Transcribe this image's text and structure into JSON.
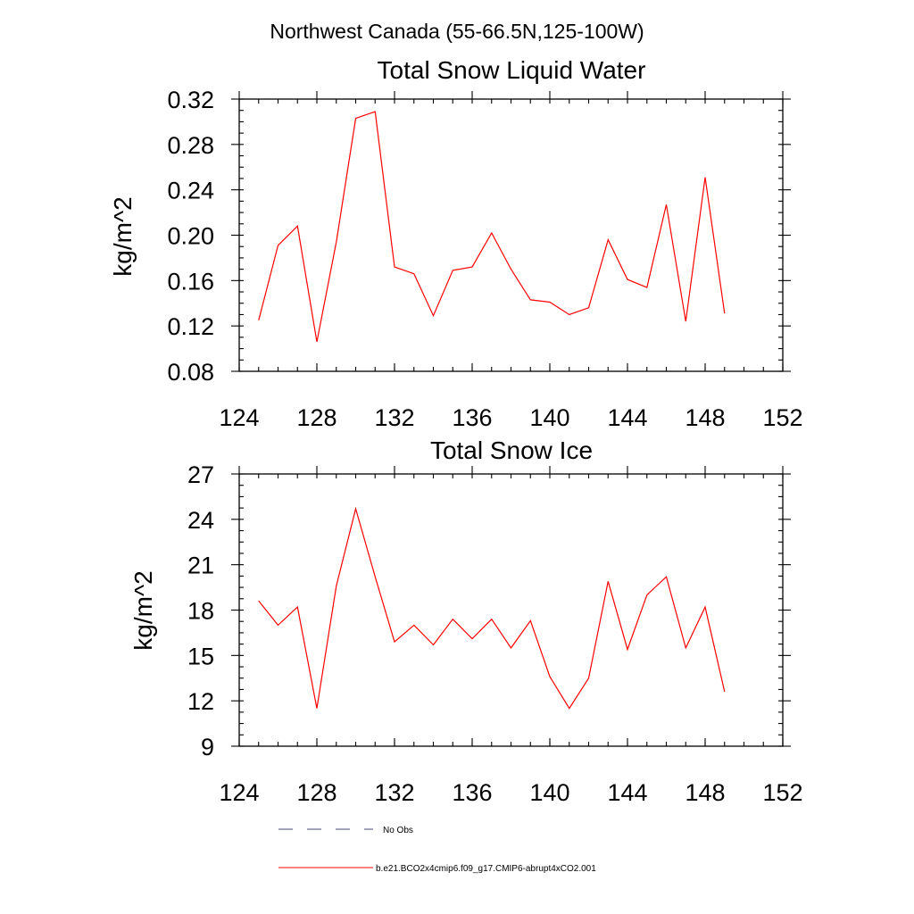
{
  "figure": {
    "title": "Northwest Canada (55-66.5N,125-100W)"
  },
  "chart_data": [
    {
      "type": "line",
      "title": "Total Snow Liquid Water",
      "xlabel": "",
      "ylabel": "kg/m^2",
      "xlim": [
        124,
        152
      ],
      "ylim": [
        0.08,
        0.32
      ],
      "x_ticks": [
        124,
        128,
        132,
        136,
        140,
        144,
        148,
        152
      ],
      "y_ticks": [
        0.08,
        0.12,
        0.16,
        0.2,
        0.24,
        0.28,
        0.32
      ],
      "x_tick_labels": [
        "124",
        "128",
        "132",
        "136",
        "140",
        "144",
        "148",
        "152"
      ],
      "y_tick_labels": [
        "0.08",
        "0.12",
        "0.16",
        "0.20",
        "0.24",
        "0.28",
        "0.32"
      ],
      "x_minor_step": 1,
      "y_minor_step": 0.01,
      "grid": false,
      "series": [
        {
          "name": "b.e21.BCO2x4cmip6.f09_g17.CMIP6-abrupt4xCO2.001",
          "color": "#ff0000",
          "x": [
            125,
            126,
            127,
            128,
            129,
            130,
            131,
            132,
            133,
            134,
            135,
            136,
            137,
            138,
            139,
            140,
            141,
            142,
            143,
            144,
            145,
            146,
            147,
            148,
            149
          ],
          "values": [
            0.125,
            0.191,
            0.208,
            0.106,
            0.194,
            0.303,
            0.309,
            0.172,
            0.166,
            0.129,
            0.169,
            0.172,
            0.202,
            0.17,
            0.143,
            0.141,
            0.13,
            0.136,
            0.196,
            0.161,
            0.154,
            0.227,
            0.124,
            0.251,
            0.131
          ]
        }
      ]
    },
    {
      "type": "line",
      "title": "Total Snow Ice",
      "xlabel": "",
      "ylabel": "kg/m^2",
      "xlim": [
        124,
        152
      ],
      "ylim": [
        9,
        27
      ],
      "x_ticks": [
        124,
        128,
        132,
        136,
        140,
        144,
        148,
        152
      ],
      "y_ticks": [
        9,
        12,
        15,
        18,
        21,
        24,
        27
      ],
      "x_tick_labels": [
        "124",
        "128",
        "132",
        "136",
        "140",
        "144",
        "148",
        "152"
      ],
      "y_tick_labels": [
        "9",
        "12",
        "15",
        "18",
        "21",
        "24",
        "27"
      ],
      "x_minor_step": 1,
      "y_minor_step": 0.75,
      "grid": false,
      "series": [
        {
          "name": "b.e21.BCO2x4cmip6.f09_g17.CMIP6-abrupt4xCO2.001",
          "color": "#ff0000",
          "x": [
            125,
            126,
            127,
            128,
            129,
            130,
            131,
            132,
            133,
            134,
            135,
            136,
            137,
            138,
            139,
            140,
            141,
            142,
            143,
            144,
            145,
            146,
            147,
            148,
            149
          ],
          "values": [
            18.6,
            17.0,
            18.2,
            11.5,
            19.6,
            24.7,
            20.2,
            15.9,
            17.0,
            15.7,
            17.4,
            16.1,
            17.4,
            15.5,
            17.3,
            13.6,
            11.5,
            13.5,
            19.9,
            15.4,
            19.0,
            20.2,
            15.5,
            18.2,
            12.6
          ]
        }
      ]
    }
  ],
  "legend": {
    "entries": [
      {
        "label": "No Obs",
        "style": "dashed",
        "color": "#4a4a7a"
      },
      {
        "label": "b.e21.BCO2x4cmip6.f09_g17.CMIP6-abrupt4xCO2.001",
        "style": "solid",
        "color": "#ff0000"
      }
    ]
  }
}
